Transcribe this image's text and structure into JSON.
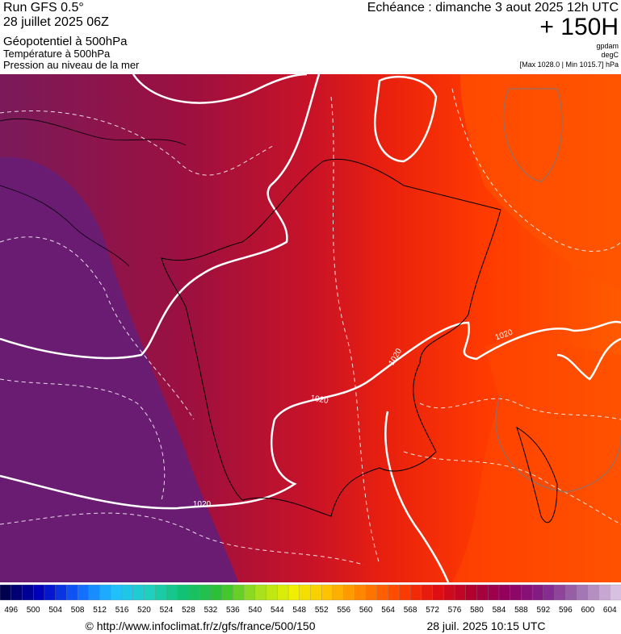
{
  "header": {
    "left": [
      "Run GFS 0.5°",
      "28 juillet 2025 06Z",
      "Géopotentiel à 500hPa",
      "Température à 500hPa",
      "Pression au niveau de la mer"
    ],
    "echeance": "Echéance : dimanche 3 aout 2025 12h UTC",
    "lead": "+ 150H",
    "units": [
      "gpdam",
      "degC"
    ],
    "extremes": "[Max 1028.0 | Min 1015.7] hPa"
  },
  "isobar_labels": [
    "1020",
    "1020",
    "1020",
    "1020"
  ],
  "colorbar": {
    "labels": [
      496,
      500,
      504,
      508,
      512,
      516,
      520,
      524,
      528,
      532,
      536,
      540,
      544,
      548,
      552,
      556,
      560,
      564,
      568,
      572,
      576,
      580,
      584,
      588,
      592,
      596,
      600,
      604
    ]
  },
  "footer": {
    "source": "© http://www.infoclimat.fr/z/gfs/france/500/150",
    "timestamp": "28 juil. 2025 10:15 UTC"
  }
}
